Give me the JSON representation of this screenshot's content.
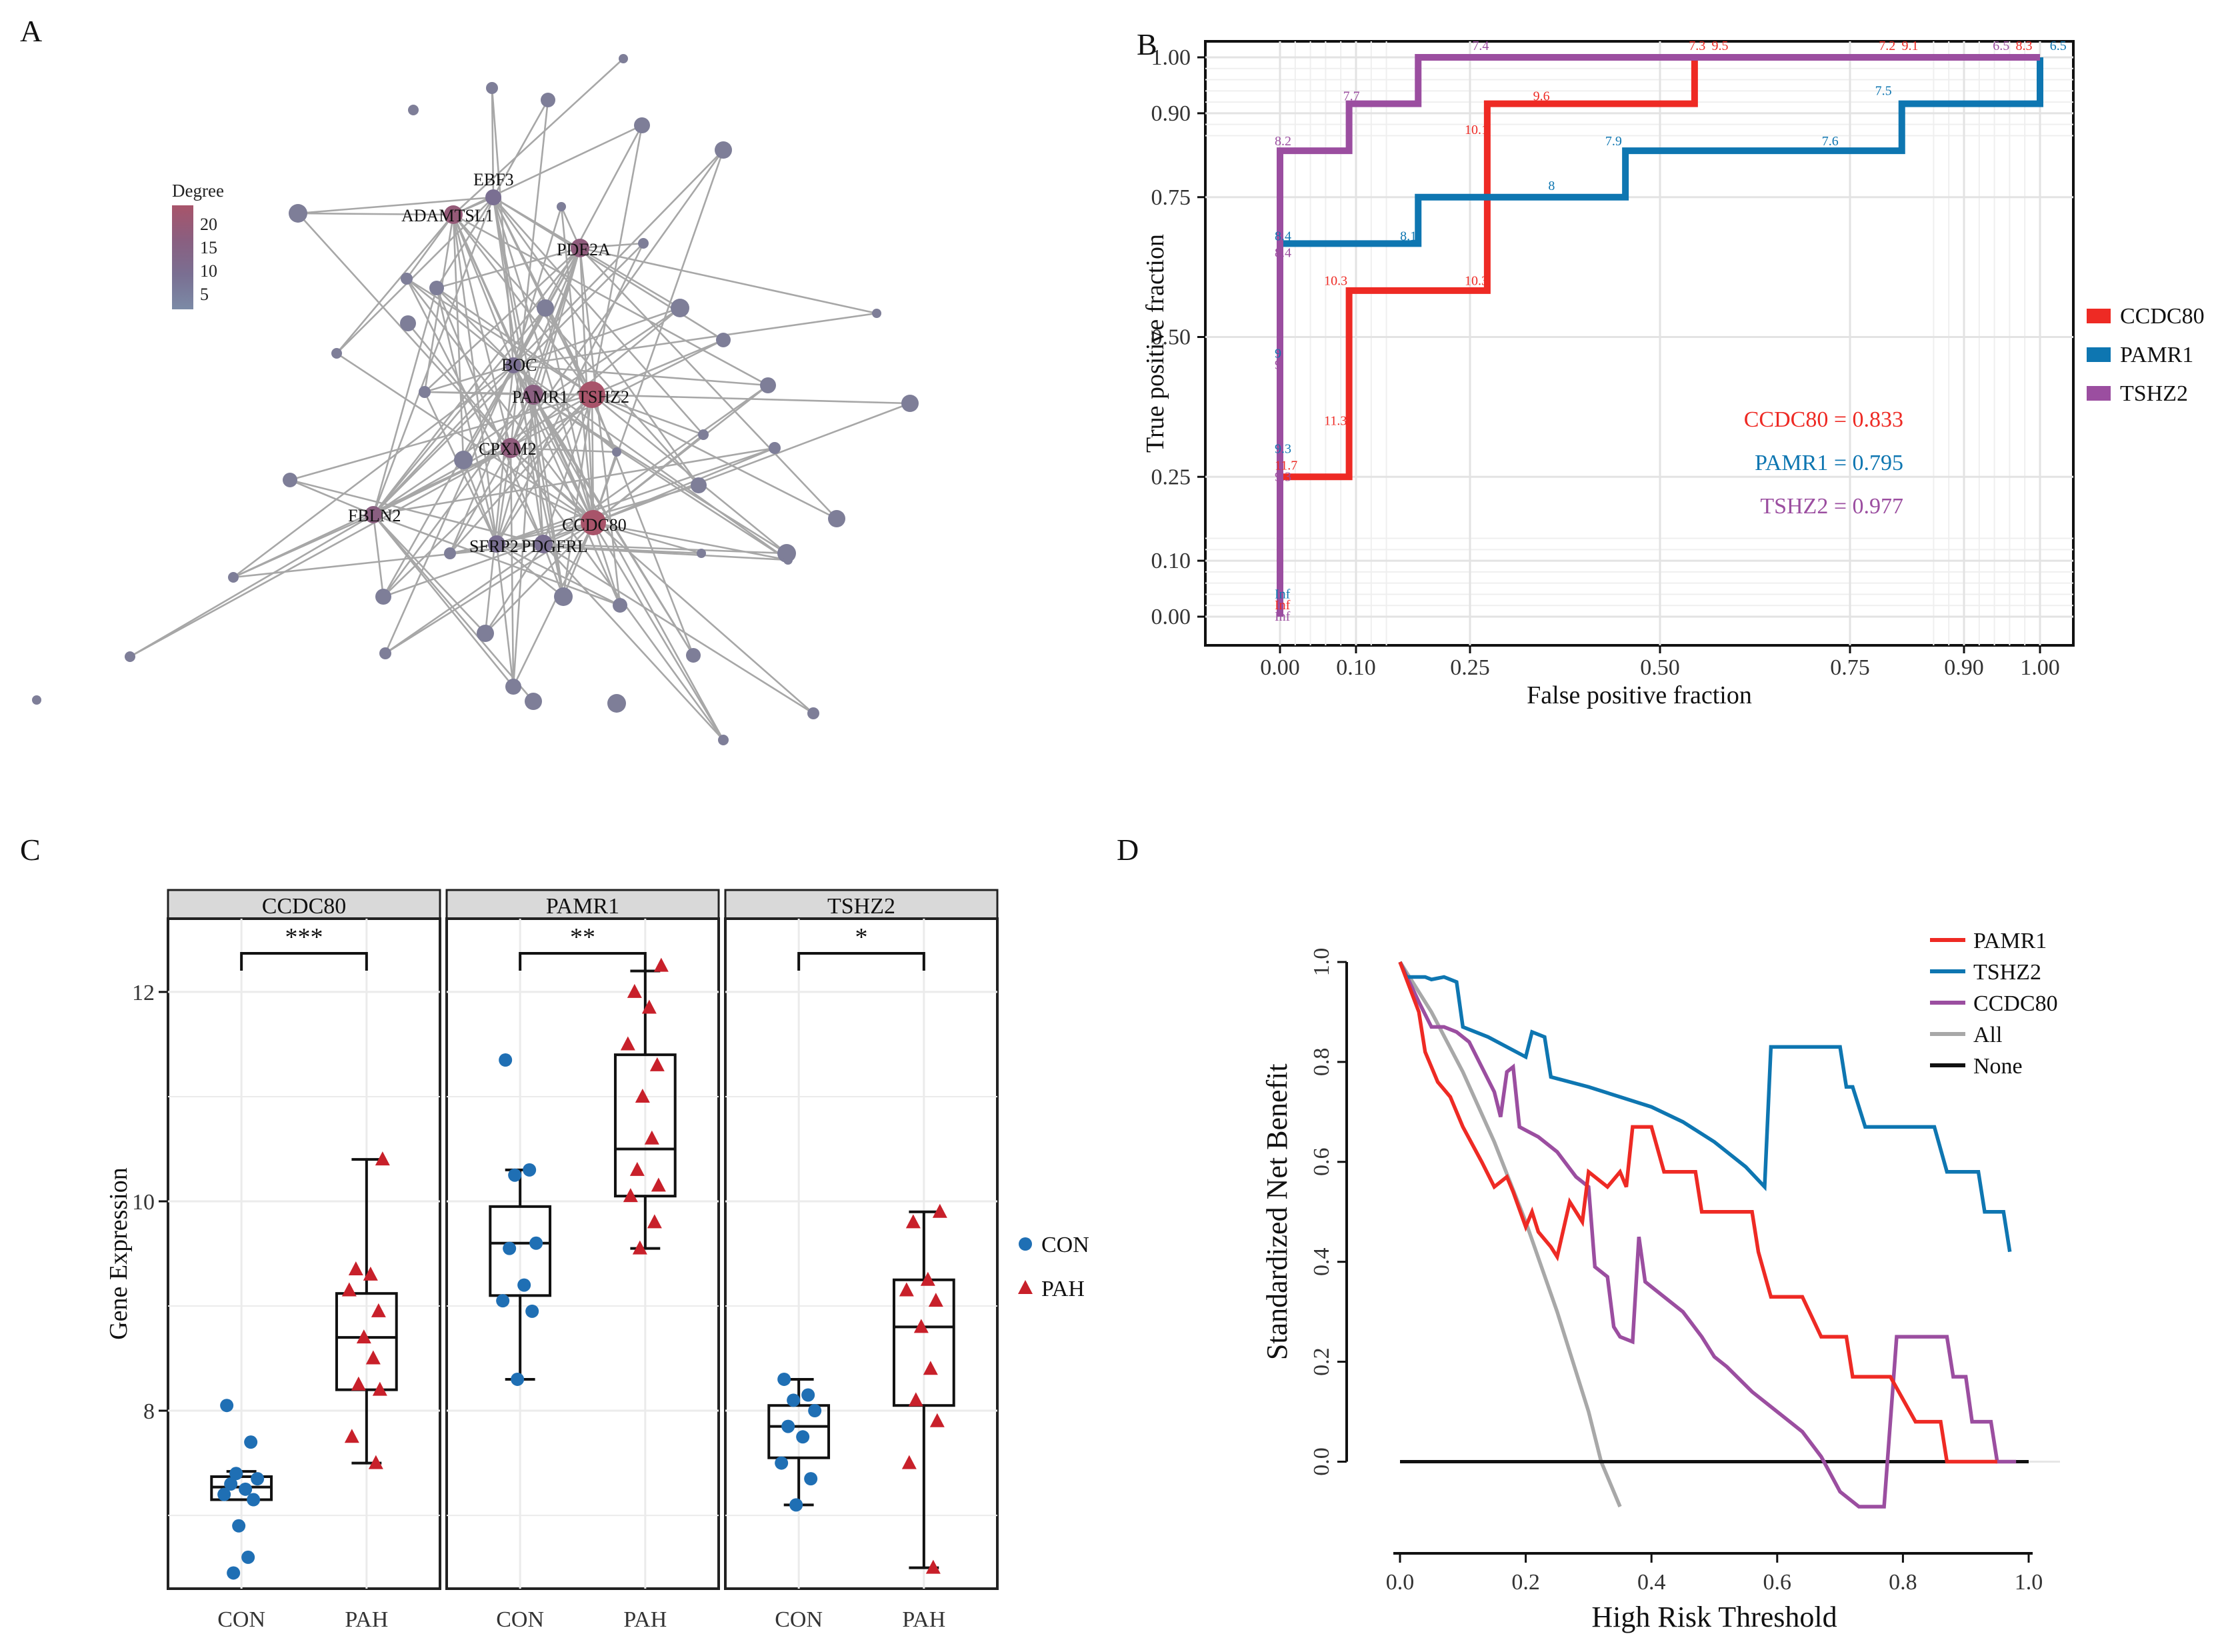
{
  "panels": {
    "A": {
      "label": "A"
    },
    "B": {
      "label": "B"
    },
    "C": {
      "label": "C"
    },
    "D": {
      "label": "D"
    }
  },
  "chart_data": [
    {
      "id": "A",
      "type": "network",
      "legend": {
        "title": "Degree",
        "ticks": [
          "20",
          "15",
          "10",
          "5"
        ],
        "colors": [
          "#a8546a",
          "#8a5f80",
          "#7a6f92",
          "#7b8aa6"
        ]
      },
      "hub_labels": [
        "EBF3",
        "ADAMTSL1",
        "PDE2A",
        "BOC",
        "PAMR1",
        "TSHZ2",
        "CPXM2",
        "FBLN2",
        "CCDC80",
        "SFRP2",
        "PDGFRL"
      ],
      "node_color": "#7e7e98",
      "edge_color": "#a7a7a7"
    },
    {
      "id": "B",
      "type": "line",
      "title": "",
      "xlabel": "False positive fraction",
      "ylabel": "True positive fraction",
      "xticks": [
        "0.00",
        "0.10",
        "0.25",
        "0.50",
        "0.75",
        "0.90",
        "1.00"
      ],
      "yticks": [
        "0.00",
        "0.10",
        "0.25",
        "0.50",
        "0.75",
        "0.90",
        "1.00"
      ],
      "series": [
        {
          "name": "CCDC80",
          "color": "#ee2a24",
          "auc": "CCDC80 = 0.833",
          "points": [
            [
              0,
              0
            ],
            [
              0,
              0.25
            ],
            [
              0.0909,
              0.25
            ],
            [
              0.0909,
              0.583
            ],
            [
              0.2727,
              0.583
            ],
            [
              0.2727,
              0.917
            ],
            [
              0.5455,
              0.917
            ],
            [
              0.5455,
              1
            ],
            [
              1,
              1
            ]
          ],
          "cutoffs": [
            {
              "t": "Inf",
              "x": 0,
              "y": 0.02
            },
            {
              "t": "11.7",
              "x": 0,
              "y": 0.27
            },
            {
              "t": "11.3",
              "x": 0.065,
              "y": 0.35
            },
            {
              "t": "10.3",
              "x": 0.065,
              "y": 0.6
            },
            {
              "t": "10.3",
              "x": 0.25,
              "y": 0.6
            },
            {
              "t": "10.1",
              "x": 0.25,
              "y": 0.87
            },
            {
              "t": "9.6",
              "x": 0.34,
              "y": 0.93
            },
            {
              "t": "7.3",
              "x": 0.545,
              "y": 1.02
            },
            {
              "t": "9.5",
              "x": 0.575,
              "y": 1.02
            },
            {
              "t": "7.2",
              "x": 0.795,
              "y": 1.02
            },
            {
              "t": "9.1",
              "x": 0.825,
              "y": 1.02
            },
            {
              "t": "8.3",
              "x": 0.975,
              "y": 1.02
            }
          ]
        },
        {
          "name": "PAMR1",
          "color": "#0e76b1",
          "auc": "PAMR1 = 0.795",
          "points": [
            [
              0,
              0
            ],
            [
              0,
              0.667
            ],
            [
              0.1818,
              0.667
            ],
            [
              0.1818,
              0.75
            ],
            [
              0.4545,
              0.75
            ],
            [
              0.4545,
              0.833
            ],
            [
              0.8182,
              0.833
            ],
            [
              0.8182,
              0.917
            ],
            [
              1,
              0.917
            ],
            [
              1,
              1
            ]
          ],
          "cutoffs": [
            {
              "t": "Inf",
              "x": 0,
              "y": 0.04
            },
            {
              "t": "9.3",
              "x": 0,
              "y": 0.3
            },
            {
              "t": "9",
              "x": 0,
              "y": 0.47
            },
            {
              "t": "8.4",
              "x": 0,
              "y": 0.68
            },
            {
              "t": "8.1",
              "x": 0.165,
              "y": 0.68
            },
            {
              "t": "8",
              "x": 0.36,
              "y": 0.77
            },
            {
              "t": "7.9",
              "x": 0.435,
              "y": 0.85
            },
            {
              "t": "7.6",
              "x": 0.72,
              "y": 0.85
            },
            {
              "t": "7.5",
              "x": 0.79,
              "y": 0.94
            },
            {
              "t": "6.5",
              "x": 1.02,
              "y": 1.02
            }
          ]
        },
        {
          "name": "TSHZ2",
          "color": "#9b4ea0",
          "auc": "TSHZ2 = 0.977",
          "points": [
            [
              0,
              0
            ],
            [
              0,
              0.833
            ],
            [
              0.0909,
              0.833
            ],
            [
              0.0909,
              0.917
            ],
            [
              0.1818,
              0.917
            ],
            [
              0.1818,
              1
            ],
            [
              1,
              1
            ]
          ],
          "cutoffs": [
            {
              "t": "Inf",
              "x": 0,
              "y": 0.0
            },
            {
              "t": "9.3",
              "x": 0,
              "y": 0.25
            },
            {
              "t": "9",
              "x": 0,
              "y": 0.45
            },
            {
              "t": "8.4",
              "x": 0,
              "y": 0.65
            },
            {
              "t": "8.2",
              "x": 0,
              "y": 0.85
            },
            {
              "t": "7.7",
              "x": 0.09,
              "y": 0.93
            },
            {
              "t": "7.4",
              "x": 0.26,
              "y": 1.02
            },
            {
              "t": "6.5",
              "x": 0.945,
              "y": 1.02
            }
          ]
        }
      ]
    },
    {
      "id": "C",
      "type": "box",
      "ylabel": "Gene Expression",
      "yticks": [
        "8",
        "10",
        "12"
      ],
      "ylim": [
        6.3,
        12.7
      ],
      "categories": [
        "CON",
        "PAH"
      ],
      "legend": [
        {
          "name": "CON",
          "color": "#1f6fb4",
          "shape": "circle"
        },
        {
          "name": "PAH",
          "color": "#c8202a",
          "shape": "triangle"
        }
      ],
      "facets": [
        {
          "name": "CCDC80",
          "signif": "***",
          "boxes": [
            {
              "group": "CON",
              "q1": 7.15,
              "median": 7.27,
              "q3": 7.37,
              "wlo": 7.15,
              "whi": 7.42
            },
            {
              "group": "PAH",
              "q1": 8.2,
              "median": 8.7,
              "q3": 9.12,
              "wlo": 7.5,
              "whi": 10.4
            }
          ],
          "points": {
            "CON": [
              8.05,
              7.7,
              7.4,
              7.35,
              7.3,
              7.25,
              7.2,
              7.15,
              6.9,
              6.6,
              6.45
            ],
            "PAH": [
              10.4,
              9.35,
              9.3,
              9.15,
              8.95,
              8.7,
              8.5,
              8.25,
              8.2,
              7.75,
              7.5
            ]
          }
        },
        {
          "name": "PAMR1",
          "signif": "**",
          "boxes": [
            {
              "group": "CON",
              "q1": 9.1,
              "median": 9.6,
              "q3": 9.95,
              "wlo": 8.3,
              "whi": 10.3
            },
            {
              "group": "PAH",
              "q1": 10.05,
              "median": 10.5,
              "q3": 11.4,
              "wlo": 9.55,
              "whi": 12.2
            }
          ],
          "points": {
            "CON": [
              11.35,
              10.3,
              10.25,
              9.6,
              9.55,
              9.2,
              9.05,
              8.95,
              8.3
            ],
            "PAH": [
              12.25,
              12.0,
              11.85,
              11.5,
              11.3,
              11.0,
              10.6,
              10.3,
              10.15,
              10.05,
              9.8,
              9.55
            ]
          }
        },
        {
          "name": "TSHZ2",
          "signif": "*",
          "boxes": [
            {
              "group": "CON",
              "q1": 7.55,
              "median": 7.85,
              "q3": 8.05,
              "wlo": 7.1,
              "whi": 8.3
            },
            {
              "group": "PAH",
              "q1": 8.05,
              "median": 8.8,
              "q3": 9.25,
              "wlo": 6.5,
              "whi": 9.9
            }
          ],
          "points": {
            "CON": [
              8.3,
              8.15,
              8.1,
              8.0,
              7.85,
              7.75,
              7.5,
              7.35,
              7.1
            ],
            "PAH": [
              9.9,
              9.8,
              9.25,
              9.15,
              9.05,
              8.8,
              8.4,
              8.1,
              7.9,
              7.5,
              6.5
            ]
          }
        }
      ]
    },
    {
      "id": "D",
      "type": "line",
      "xlabel": "High Risk Threshold",
      "ylabel": "Standardized Net Benefit",
      "xticks": [
        "0.0",
        "0.2",
        "0.4",
        "0.6",
        "0.8",
        "1.0"
      ],
      "yticks": [
        "0.0",
        "0.2",
        "0.4",
        "0.6",
        "0.8",
        "1.0"
      ],
      "xlim": [
        0,
        1
      ],
      "ylim": [
        -0.09,
        1.02
      ],
      "series": [
        {
          "name": "PAMR1",
          "color": "#ee2a24",
          "points": [
            [
              0,
              1
            ],
            [
              0.03,
              0.9
            ],
            [
              0.04,
              0.82
            ],
            [
              0.06,
              0.76
            ],
            [
              0.08,
              0.73
            ],
            [
              0.1,
              0.67
            ],
            [
              0.13,
              0.6
            ],
            [
              0.15,
              0.55
            ],
            [
              0.17,
              0.57
            ],
            [
              0.18,
              0.54
            ],
            [
              0.2,
              0.47
            ],
            [
              0.21,
              0.5
            ],
            [
              0.22,
              0.46
            ],
            [
              0.24,
              0.43
            ],
            [
              0.25,
              0.41
            ],
            [
              0.27,
              0.52
            ],
            [
              0.29,
              0.48
            ],
            [
              0.3,
              0.58
            ],
            [
              0.33,
              0.55
            ],
            [
              0.35,
              0.58
            ],
            [
              0.36,
              0.55
            ],
            [
              0.37,
              0.67
            ],
            [
              0.4,
              0.67
            ],
            [
              0.42,
              0.58
            ],
            [
              0.47,
              0.58
            ],
            [
              0.48,
              0.5
            ],
            [
              0.52,
              0.5
            ],
            [
              0.56,
              0.5
            ],
            [
              0.57,
              0.42
            ],
            [
              0.59,
              0.33
            ],
            [
              0.64,
              0.33
            ],
            [
              0.67,
              0.25
            ],
            [
              0.71,
              0.25
            ],
            [
              0.72,
              0.17
            ],
            [
              0.78,
              0.17
            ],
            [
              0.82,
              0.08
            ],
            [
              0.86,
              0.08
            ],
            [
              0.87,
              0
            ],
            [
              0.95,
              0
            ]
          ]
        },
        {
          "name": "TSHZ2",
          "color": "#0e76b1",
          "points": [
            [
              0,
              1
            ],
            [
              0.01,
              0.97
            ],
            [
              0.04,
              0.97
            ],
            [
              0.05,
              0.965
            ],
            [
              0.07,
              0.97
            ],
            [
              0.09,
              0.96
            ],
            [
              0.1,
              0.87
            ],
            [
              0.14,
              0.85
            ],
            [
              0.2,
              0.81
            ],
            [
              0.21,
              0.86
            ],
            [
              0.23,
              0.85
            ],
            [
              0.24,
              0.77
            ],
            [
              0.3,
              0.75
            ],
            [
              0.35,
              0.73
            ],
            [
              0.4,
              0.71
            ],
            [
              0.45,
              0.68
            ],
            [
              0.5,
              0.64
            ],
            [
              0.55,
              0.59
            ],
            [
              0.58,
              0.55
            ],
            [
              0.59,
              0.83
            ],
            [
              0.63,
              0.83
            ],
            [
              0.7,
              0.83
            ],
            [
              0.71,
              0.75
            ],
            [
              0.72,
              0.75
            ],
            [
              0.74,
              0.67
            ],
            [
              0.85,
              0.67
            ],
            [
              0.87,
              0.58
            ],
            [
              0.92,
              0.58
            ],
            [
              0.93,
              0.5
            ],
            [
              0.96,
              0.5
            ],
            [
              0.97,
              0.42
            ]
          ]
        },
        {
          "name": "CCDC80",
          "color": "#9b4ea0",
          "points": [
            [
              0,
              1
            ],
            [
              0.03,
              0.92
            ],
            [
              0.05,
              0.87
            ],
            [
              0.07,
              0.87
            ],
            [
              0.09,
              0.86
            ],
            [
              0.11,
              0.84
            ],
            [
              0.13,
              0.79
            ],
            [
              0.15,
              0.74
            ],
            [
              0.16,
              0.69
            ],
            [
              0.17,
              0.78
            ],
            [
              0.18,
              0.79
            ],
            [
              0.19,
              0.67
            ],
            [
              0.22,
              0.65
            ],
            [
              0.25,
              0.62
            ],
            [
              0.28,
              0.57
            ],
            [
              0.3,
              0.55
            ],
            [
              0.31,
              0.39
            ],
            [
              0.33,
              0.37
            ],
            [
              0.34,
              0.27
            ],
            [
              0.35,
              0.25
            ],
            [
              0.37,
              0.24
            ],
            [
              0.38,
              0.45
            ],
            [
              0.39,
              0.36
            ],
            [
              0.4,
              0.35
            ],
            [
              0.45,
              0.3
            ],
            [
              0.48,
              0.25
            ],
            [
              0.5,
              0.21
            ],
            [
              0.52,
              0.19
            ],
            [
              0.56,
              0.14
            ],
            [
              0.6,
              0.1
            ],
            [
              0.64,
              0.06
            ],
            [
              0.67,
              0.01
            ],
            [
              0.7,
              -0.06
            ],
            [
              0.73,
              -0.09
            ],
            [
              0.77,
              -0.09
            ],
            [
              0.79,
              0.25
            ],
            [
              0.87,
              0.25
            ],
            [
              0.88,
              0.17
            ],
            [
              0.9,
              0.17
            ],
            [
              0.91,
              0.08
            ],
            [
              0.94,
              0.08
            ],
            [
              0.95,
              0
            ],
            [
              0.98,
              0
            ]
          ]
        },
        {
          "name": "All",
          "color": "#a8a8a8",
          "points": [
            [
              0,
              1
            ],
            [
              0.05,
              0.9
            ],
            [
              0.1,
              0.78
            ],
            [
              0.15,
              0.64
            ],
            [
              0.2,
              0.48
            ],
            [
              0.25,
              0.3
            ],
            [
              0.3,
              0.1
            ],
            [
              0.32,
              0
            ],
            [
              0.35,
              -0.09
            ]
          ]
        },
        {
          "name": "None",
          "color": "#111111",
          "points": [
            [
              0,
              0
            ],
            [
              1,
              0
            ]
          ]
        }
      ]
    }
  ]
}
